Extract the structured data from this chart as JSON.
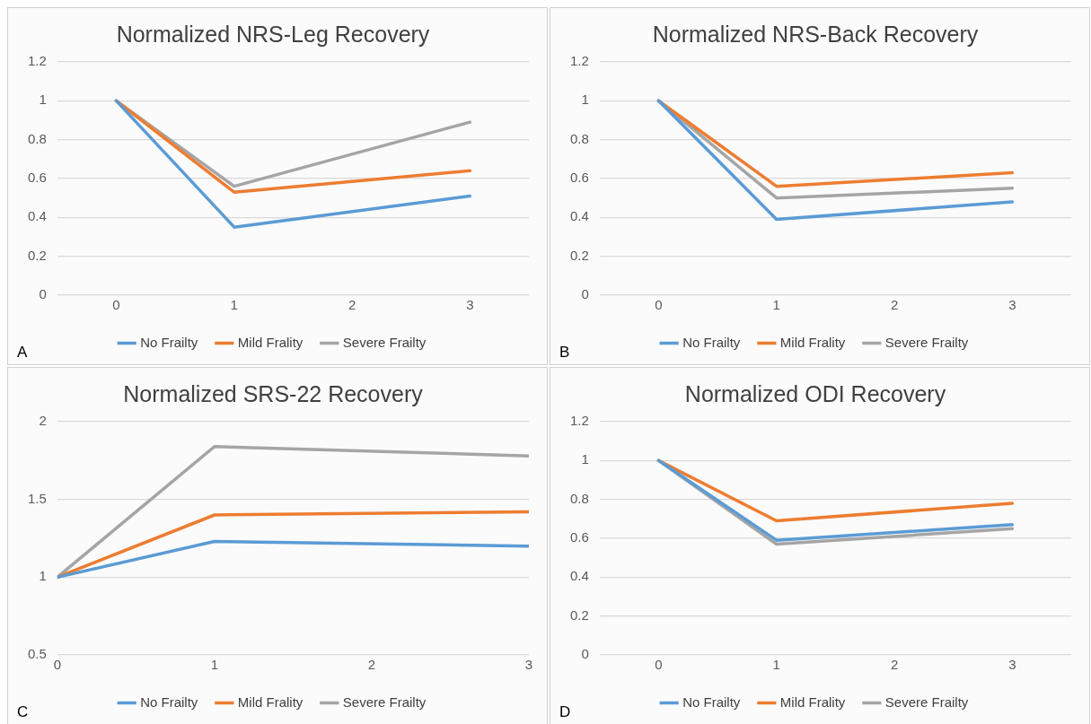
{
  "chart_data": [
    {
      "type": "line",
      "title": "Normalized NRS-Leg Recovery",
      "x": [
        0,
        1,
        3
      ],
      "xlim": [
        -0.5,
        3.5
      ],
      "xticks": [
        0,
        1,
        2,
        3
      ],
      "ylim": [
        0,
        1.2
      ],
      "yticks": [
        0,
        0.2,
        0.4,
        0.6,
        0.8,
        1,
        1.2
      ],
      "grid": "y",
      "legend": "bottom",
      "marker": "none",
      "line_style": "solid",
      "annotations": [
        "A"
      ],
      "series": [
        {
          "name": "No Frailty",
          "color": "#5b9bd5",
          "values": [
            1,
            0.35,
            0.51
          ]
        },
        {
          "name": "Mild Frality",
          "color": "#ed7d31",
          "values": [
            1,
            0.53,
            0.64
          ]
        },
        {
          "name": "Severe Frailty",
          "color": "#a5a5a5",
          "values": [
            1,
            0.56,
            0.89
          ]
        }
      ]
    },
    {
      "type": "line",
      "title": "Normalized NRS-Back Recovery",
      "x": [
        0,
        1,
        3
      ],
      "xlim": [
        -0.5,
        3.5
      ],
      "xticks": [
        0,
        1,
        2,
        3
      ],
      "ylim": [
        0,
        1.2
      ],
      "yticks": [
        0,
        0.2,
        0.4,
        0.6,
        0.8,
        1,
        1.2
      ],
      "grid": "y",
      "legend": "bottom",
      "marker": "none",
      "line_style": "solid",
      "annotations": [
        "B"
      ],
      "series": [
        {
          "name": "No Frailty",
          "color": "#5b9bd5",
          "values": [
            1,
            0.39,
            0.48
          ]
        },
        {
          "name": "Mild Frality",
          "color": "#ed7d31",
          "values": [
            1,
            0.56,
            0.63
          ]
        },
        {
          "name": "Severe Frailty",
          "color": "#a5a5a5",
          "values": [
            1,
            0.5,
            0.55
          ]
        }
      ]
    },
    {
      "type": "line",
      "title": "Normalized SRS-22 Recovery",
      "x": [
        0,
        1,
        3
      ],
      "xlim": [
        0,
        3
      ],
      "xticks": [
        0,
        1,
        2,
        3
      ],
      "ylim": [
        0.5,
        2
      ],
      "yticks": [
        0.5,
        1,
        1.5,
        2
      ],
      "grid": "y",
      "legend": "bottom",
      "marker": "none",
      "line_style": "solid",
      "annotations": [
        "C"
      ],
      "series": [
        {
          "name": "No Frailty",
          "color": "#5b9bd5",
          "values": [
            1,
            1.23,
            1.2
          ]
        },
        {
          "name": "Mild Frality",
          "color": "#ed7d31",
          "values": [
            1,
            1.4,
            1.42
          ]
        },
        {
          "name": "Severe Frailty",
          "color": "#a5a5a5",
          "values": [
            1,
            1.84,
            1.78
          ]
        }
      ]
    },
    {
      "type": "line",
      "title": "Normalized ODI Recovery",
      "x": [
        0,
        1,
        3
      ],
      "xlim": [
        -0.5,
        3.5
      ],
      "xticks": [
        0,
        1,
        2,
        3
      ],
      "ylim": [
        0,
        1.2
      ],
      "yticks": [
        0,
        0.2,
        0.4,
        0.6,
        0.8,
        1,
        1.2
      ],
      "grid": "y",
      "legend": "bottom",
      "marker": "none",
      "line_style": "solid",
      "annotations": [
        "D"
      ],
      "series": [
        {
          "name": "No Frailty",
          "color": "#5b9bd5",
          "values": [
            1,
            0.59,
            0.67
          ]
        },
        {
          "name": "Mild Frality",
          "color": "#ed7d31",
          "values": [
            1,
            0.69,
            0.78
          ]
        },
        {
          "name": "Severe Frailty",
          "color": "#a5a5a5",
          "values": [
            1,
            0.57,
            0.65
          ]
        }
      ]
    }
  ]
}
